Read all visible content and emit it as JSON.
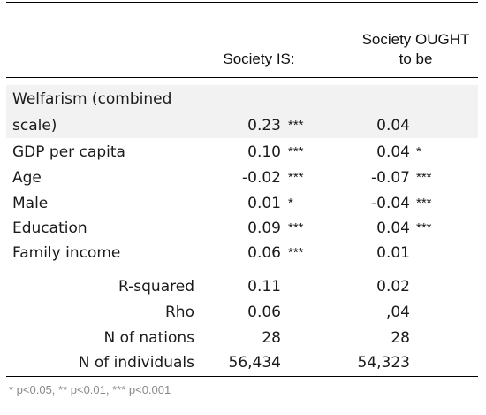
{
  "headers": {
    "col_is": "Society IS:",
    "col_ought_line1": "Society OUGHT",
    "col_ought_line2": "to be"
  },
  "rows": [
    {
      "label_line1": "Welfarism (combined",
      "label_line2": "scale)",
      "is": "0.23",
      "is_sig": "***",
      "ought": "0.04",
      "ought_sig": ""
    },
    {
      "label": "GDP per capita",
      "is": "0.10",
      "is_sig": "***",
      "ought": "0.04",
      "ought_sig": "*"
    },
    {
      "label": "Age",
      "is": "-0.02",
      "is_sig": "***",
      "ought": "-0.07",
      "ought_sig": "***"
    },
    {
      "label": "Male",
      "is": "0.01",
      "is_sig": "*",
      "ought": "-0.04",
      "ought_sig": "***"
    },
    {
      "label": "Education",
      "is": "0.09",
      "is_sig": "***",
      "ought": "0.04",
      "ought_sig": "***"
    },
    {
      "label": "Family income",
      "is": "0.06",
      "is_sig": "***",
      "ought": "0.01",
      "ought_sig": ""
    }
  ],
  "stats": [
    {
      "label": "R-squared",
      "is": "0.11",
      "ought": "0.02"
    },
    {
      "label": "Rho",
      "is": "0.06",
      "ought": ",04"
    },
    {
      "label": "N of nations",
      "is": "28",
      "ought": "28"
    },
    {
      "label": "N of individuals",
      "is": "56,434",
      "ought": "54,323"
    }
  ],
  "footnote": "* p<0.05, ** p<0.01, *** p<0.001"
}
